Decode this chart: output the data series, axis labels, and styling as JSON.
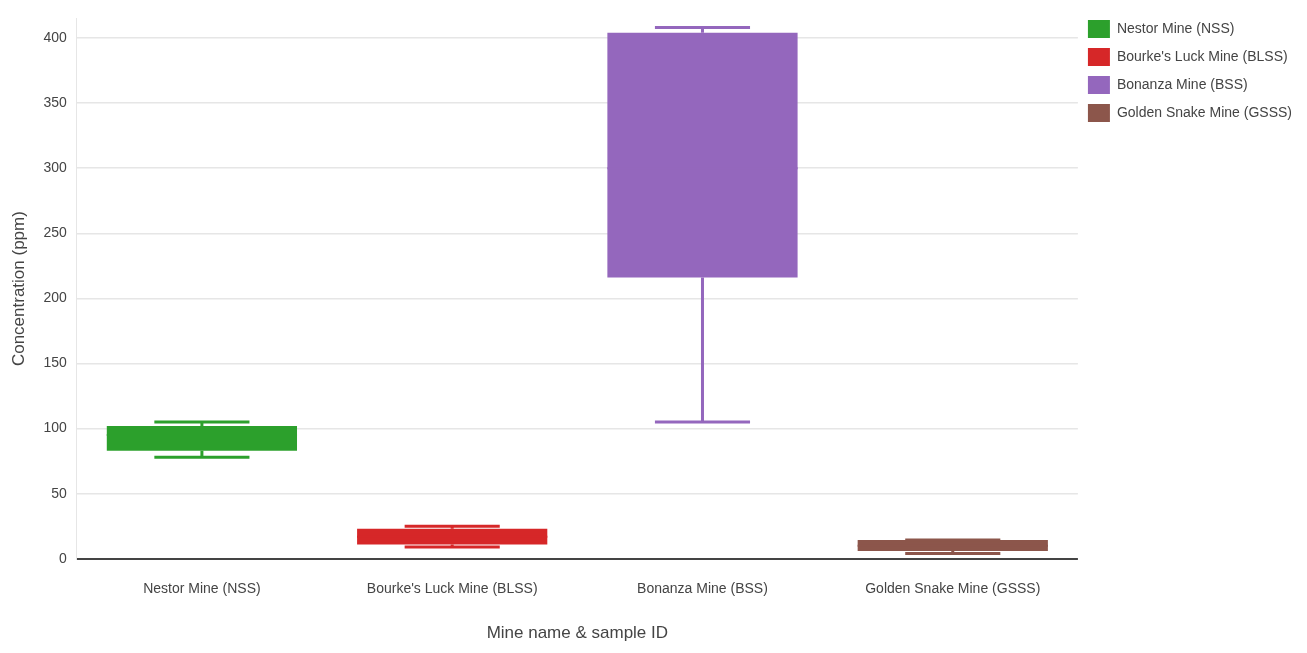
{
  "chart_data": {
    "type": "box",
    "xlabel": "Mine name & sample ID",
    "ylabel": "Concentration (ppm)",
    "categories": [
      "Nestor Mine (NSS)",
      "Bourke's Luck Mine (BLSS)",
      "Bonanza Mine (BSS)",
      "Golden Snake Mine (GSSS)"
    ],
    "series": [
      {
        "name": "Nestor Mine (NSS)",
        "color": "#2ca02c",
        "boxes": [
          {
            "low": 78,
            "q1": 83,
            "median": 95,
            "q3": 102,
            "high": 105
          },
          null,
          null,
          null
        ]
      },
      {
        "name": "Bourke's Luck Mine (BLSS)",
        "color": "#d62728",
        "boxes": [
          null,
          {
            "low": 9,
            "q1": 11,
            "median": 17,
            "q3": 23,
            "high": 25
          },
          null,
          null
        ]
      },
      {
        "name": "Bonanza Mine (BSS)",
        "color": "#9467bd",
        "boxes": [
          null,
          null,
          {
            "low": 105,
            "q1": 216,
            "median": 300,
            "q3": 404,
            "high": 408
          },
          null
        ]
      },
      {
        "name": "Golden Snake Mine (GSSS)",
        "color": "#8c564b",
        "boxes": [
          null,
          null,
          null,
          {
            "low": 4,
            "q1": 6,
            "median": 10,
            "q3": 14.5,
            "high": 14.5
          }
        ]
      }
    ],
    "ylim": [
      0,
      415
    ],
    "yticks": [
      0,
      50,
      100,
      150,
      200,
      250,
      300,
      350,
      400
    ],
    "grid": "y",
    "legend": "top right"
  }
}
